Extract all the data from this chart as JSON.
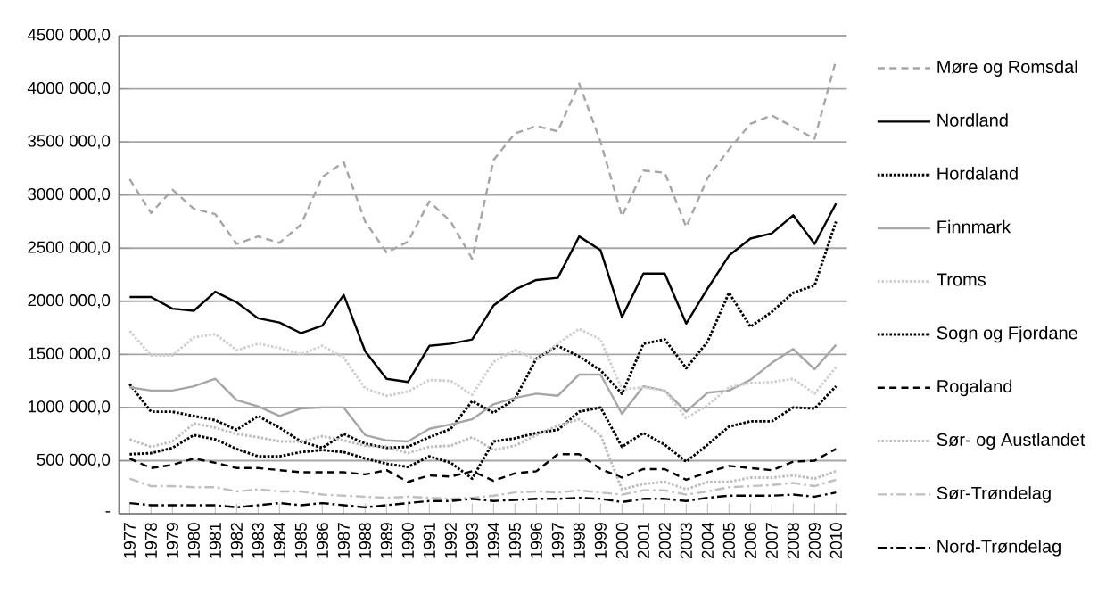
{
  "chart_data": {
    "type": "line",
    "categories": [
      "1977",
      "1978",
      "1979",
      "1980",
      "1981",
      "1982",
      "1983",
      "1984",
      "1985",
      "1986",
      "1987",
      "1988",
      "1989",
      "1990",
      "1991",
      "1992",
      "1993",
      "1994",
      "1995",
      "1996",
      "1997",
      "1998",
      "1999",
      "2000",
      "2001",
      "2002",
      "2003",
      "2004",
      "2005",
      "2006",
      "2007",
      "2008",
      "2009",
      "2010"
    ],
    "ylim": [
      0,
      4500000
    ],
    "yticks": [
      {
        "value": 0,
        "label": "-"
      },
      {
        "value": 500000,
        "label": "500 000,0"
      },
      {
        "value": 1000000,
        "label": "1000 000,0"
      },
      {
        "value": 1500000,
        "label": "1500 000,0"
      },
      {
        "value": 2000000,
        "label": "2000 000,0"
      },
      {
        "value": 2500000,
        "label": "2500 000,0"
      },
      {
        "value": 3000000,
        "label": "3000 000,0"
      },
      {
        "value": 3500000,
        "label": "3500 000,0"
      },
      {
        "value": 4000000,
        "label": "4000 000,0"
      },
      {
        "value": 4500000,
        "label": "4500 000,0"
      }
    ],
    "grid": "y",
    "legend": "right",
    "series": [
      {
        "name": "Møre og Romsdal",
        "color": "#a6a6a6",
        "line_style": "dashed",
        "values": [
          3150000,
          2830000,
          3050000,
          2870000,
          2820000,
          2540000,
          2610000,
          2550000,
          2720000,
          3170000,
          3310000,
          2750000,
          2460000,
          2560000,
          2940000,
          2750000,
          2400000,
          3330000,
          3580000,
          3650000,
          3600000,
          4050000,
          3500000,
          2800000,
          3230000,
          3210000,
          2700000,
          3160000,
          3430000,
          3670000,
          3750000,
          3640000,
          3530000,
          4270000
        ]
      },
      {
        "name": "Nordland",
        "color": "#000000",
        "line_style": "solid",
        "values": [
          2040000,
          2040000,
          1930000,
          1910000,
          2090000,
          1990000,
          1840000,
          1800000,
          1700000,
          1770000,
          2060000,
          1530000,
          1270000,
          1240000,
          1580000,
          1600000,
          1640000,
          1960000,
          2110000,
          2200000,
          2220000,
          2610000,
          2480000,
          1850000,
          2260000,
          2260000,
          1790000,
          2120000,
          2430000,
          2590000,
          2640000,
          2810000,
          2540000,
          2920000
        ]
      },
      {
        "name": "Hordaland",
        "color": "#000000",
        "line_style": "dotted",
        "values": [
          1220000,
          960000,
          960000,
          920000,
          880000,
          790000,
          920000,
          810000,
          680000,
          620000,
          750000,
          660000,
          620000,
          630000,
          720000,
          800000,
          1060000,
          950000,
          1080000,
          1460000,
          1580000,
          1480000,
          1350000,
          1130000,
          1600000,
          1640000,
          1370000,
          1620000,
          2080000,
          1760000,
          1900000,
          2080000,
          2150000,
          2750000
        ]
      },
      {
        "name": "Finnmark",
        "color": "#a6a6a6",
        "line_style": "solid",
        "values": [
          1190000,
          1160000,
          1160000,
          1200000,
          1270000,
          1070000,
          1010000,
          920000,
          990000,
          1000000,
          1000000,
          740000,
          690000,
          680000,
          800000,
          840000,
          890000,
          1030000,
          1090000,
          1130000,
          1110000,
          1310000,
          1310000,
          940000,
          1200000,
          1160000,
          960000,
          1140000,
          1160000,
          1260000,
          1420000,
          1550000,
          1360000,
          1590000
        ]
      },
      {
        "name": "Troms",
        "color": "#d0d0d0",
        "line_style": "dotted",
        "values": [
          1720000,
          1490000,
          1490000,
          1660000,
          1690000,
          1540000,
          1600000,
          1560000,
          1500000,
          1580000,
          1470000,
          1180000,
          1110000,
          1150000,
          1260000,
          1250000,
          1120000,
          1430000,
          1540000,
          1450000,
          1600000,
          1740000,
          1640000,
          1170000,
          1190000,
          1160000,
          900000,
          1020000,
          1190000,
          1230000,
          1240000,
          1270000,
          1130000,
          1380000
        ]
      },
      {
        "name": "Sogn og Fjordane",
        "color": "#000000",
        "line_style": "dotted",
        "values": [
          560000,
          570000,
          620000,
          740000,
          700000,
          610000,
          540000,
          540000,
          580000,
          600000,
          580000,
          520000,
          470000,
          440000,
          540000,
          480000,
          330000,
          680000,
          710000,
          760000,
          790000,
          960000,
          1000000,
          630000,
          760000,
          650000,
          490000,
          650000,
          820000,
          870000,
          870000,
          1000000,
          990000,
          1200000
        ]
      },
      {
        "name": "Rogaland",
        "color": "#000000",
        "line_style": "dashed",
        "values": [
          520000,
          430000,
          460000,
          520000,
          480000,
          430000,
          430000,
          410000,
          390000,
          390000,
          390000,
          370000,
          410000,
          300000,
          360000,
          350000,
          400000,
          310000,
          380000,
          400000,
          560000,
          560000,
          420000,
          340000,
          420000,
          420000,
          320000,
          390000,
          450000,
          430000,
          410000,
          490000,
          500000,
          610000
        ]
      },
      {
        "name": "Sør- og Austlandet",
        "color": "#bfbfbf",
        "line_style": "dotted",
        "values": [
          700000,
          630000,
          680000,
          850000,
          810000,
          750000,
          720000,
          680000,
          680000,
          730000,
          690000,
          640000,
          630000,
          570000,
          630000,
          640000,
          720000,
          600000,
          640000,
          740000,
          830000,
          890000,
          740000,
          230000,
          280000,
          300000,
          230000,
          300000,
          300000,
          340000,
          340000,
          360000,
          330000,
          400000
        ]
      },
      {
        "name": "Sør-Trøndelag",
        "color": "#bfbfbf",
        "line_style": "dashdot",
        "values": [
          330000,
          260000,
          260000,
          250000,
          250000,
          210000,
          230000,
          210000,
          210000,
          180000,
          170000,
          160000,
          150000,
          160000,
          150000,
          140000,
          150000,
          170000,
          200000,
          210000,
          200000,
          220000,
          200000,
          180000,
          220000,
          220000,
          180000,
          210000,
          250000,
          260000,
          270000,
          290000,
          260000,
          320000
        ]
      },
      {
        "name": "Nord-Trøndelag",
        "color": "#000000",
        "line_style": "dashdot",
        "values": [
          100000,
          80000,
          80000,
          80000,
          80000,
          60000,
          80000,
          100000,
          80000,
          100000,
          80000,
          60000,
          80000,
          100000,
          120000,
          120000,
          140000,
          120000,
          130000,
          140000,
          140000,
          150000,
          140000,
          110000,
          140000,
          140000,
          120000,
          150000,
          170000,
          170000,
          170000,
          180000,
          160000,
          200000
        ]
      }
    ]
  }
}
